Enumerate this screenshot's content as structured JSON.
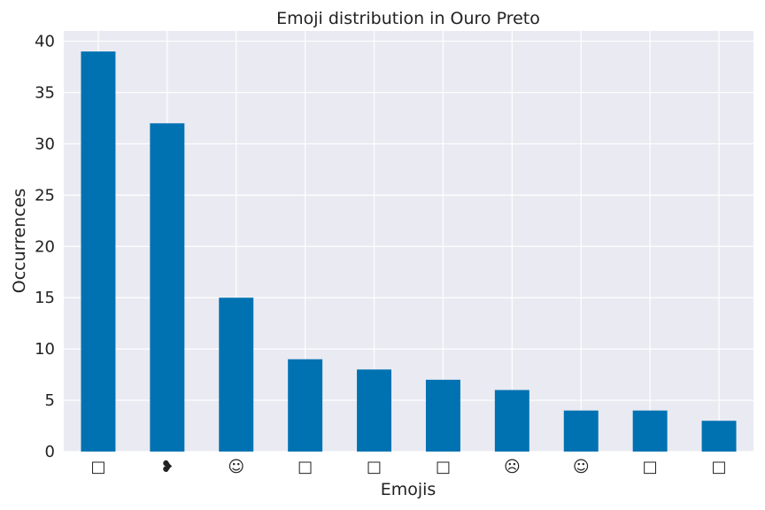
{
  "chart_data": {
    "type": "bar",
    "title": "Emoji distribution in Ouro Preto",
    "xlabel": "Emojis",
    "ylabel": "Occurrences",
    "categories": [
      "□",
      "❥",
      "☺",
      "□",
      "□",
      "□",
      "☹",
      "☺",
      "□",
      "□"
    ],
    "values": [
      39,
      32,
      15,
      9,
      8,
      7,
      6,
      4,
      4,
      3
    ],
    "ylim": [
      0,
      41
    ],
    "yticks": [
      "0",
      "5",
      "10",
      "15",
      "20",
      "25",
      "30",
      "35",
      "40"
    ],
    "grid": true,
    "legend": "none",
    "colors": {
      "bar": "#0072b2",
      "plot_background": "#eaeaf2",
      "grid": "#ffffff"
    }
  }
}
